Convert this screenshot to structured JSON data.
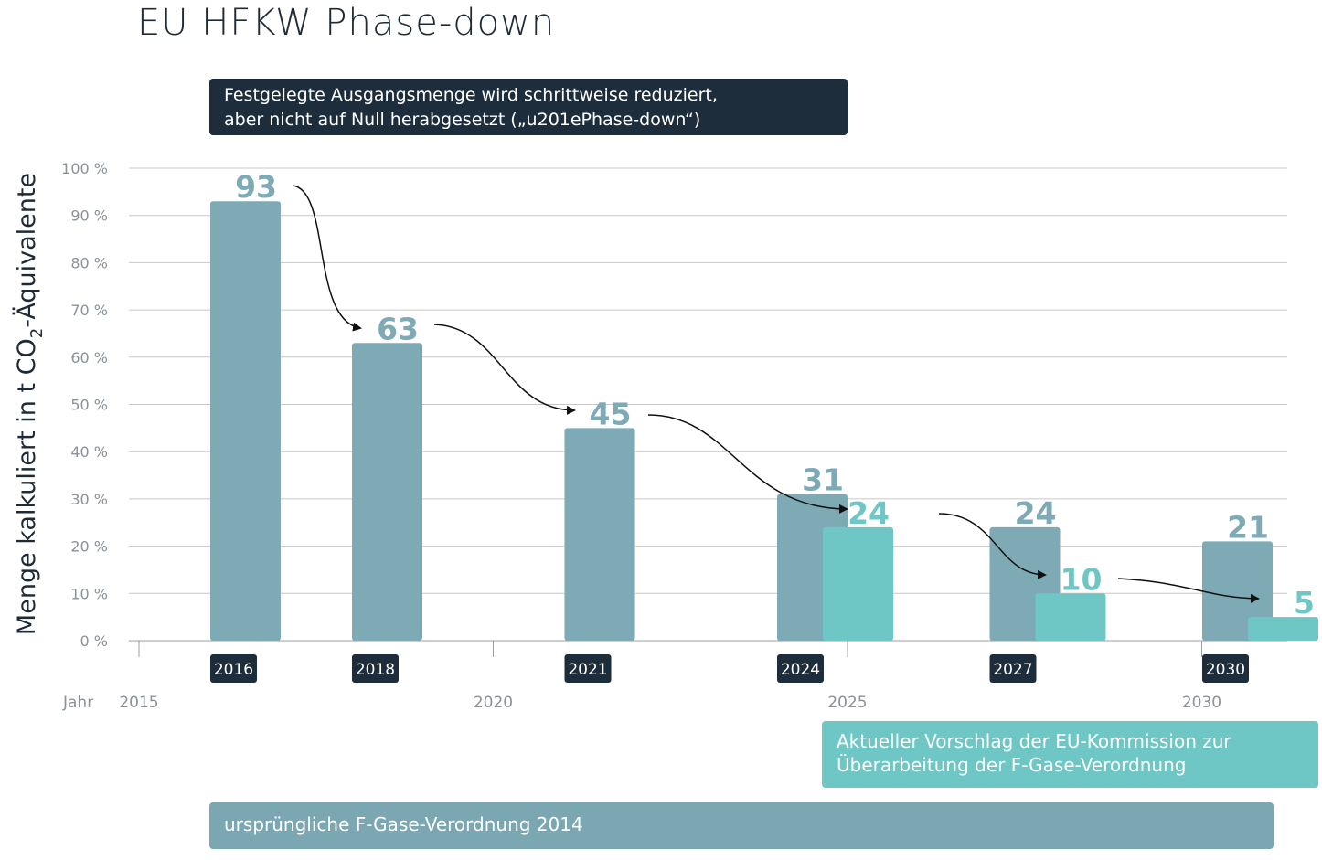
{
  "title": "EU HFKW Phase-down",
  "note": {
    "line1": "Festgelegte Ausgangsmenge wird schrittweise reduziert,",
    "line2": "aber nicht auf Null herabgesetzt („u201ePhase-down“)"
  },
  "proposal": {
    "line1": "Aktueller Vorschlag der EU-Kommission zur",
    "line2": "Überarbeitung der F-Gase-Verordnung"
  },
  "original_regulation": "ursprüngliche F-Gase-Verordnung 2014",
  "colors": {
    "original": "#7eaab6",
    "proposal": "#6ec7c5",
    "original_label": "#7eaab6",
    "proposal_label": "#6ec7c5",
    "dark": "#1e2d3c",
    "grid": "#c8c8c8"
  },
  "chart_data": {
    "type": "bar",
    "title": "EU HFKW Phase-down",
    "ylabel": "Menge kalkuliert in t CO2-Äquivalente",
    "xlabel": "Jahr",
    "ylim": [
      0,
      100
    ],
    "yticks": [
      "0 %",
      "10 %",
      "20 %",
      "30 %",
      "40 %",
      "50 %",
      "60 %",
      "70 %",
      "80 %",
      "90 %",
      "100 %"
    ],
    "x_axis_years": [
      "2015",
      "2020",
      "2025",
      "2030"
    ],
    "categories": [
      "2016",
      "2018",
      "2021",
      "2024",
      "2027",
      "2030"
    ],
    "series": [
      {
        "name": "ursprüngliche F-Gase-Verordnung 2014",
        "values": [
          93,
          63,
          45,
          31,
          24,
          21
        ]
      },
      {
        "name": "Aktueller Vorschlag der EU-Kommission zur Überarbeitung der F-Gase-Verordnung",
        "values": [
          null,
          null,
          null,
          24,
          10,
          5
        ]
      }
    ],
    "grid": true
  }
}
